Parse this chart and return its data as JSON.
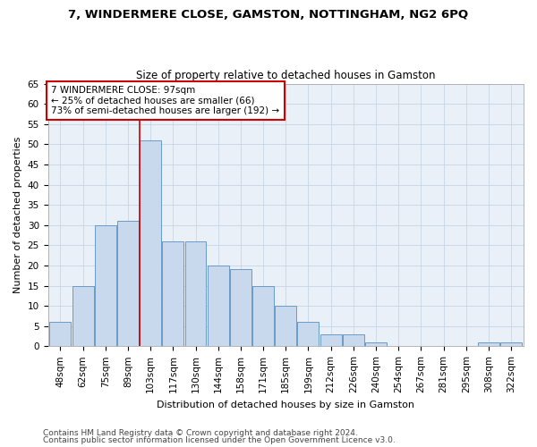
{
  "title": "7, WINDERMERE CLOSE, GAMSTON, NOTTINGHAM, NG2 6PQ",
  "subtitle": "Size of property relative to detached houses in Gamston",
  "xlabel": "Distribution of detached houses by size in Gamston",
  "ylabel": "Number of detached properties",
  "bar_labels": [
    "48sqm",
    "62sqm",
    "75sqm",
    "89sqm",
    "103sqm",
    "117sqm",
    "130sqm",
    "144sqm",
    "158sqm",
    "171sqm",
    "185sqm",
    "199sqm",
    "212sqm",
    "226sqm",
    "240sqm",
    "254sqm",
    "267sqm",
    "281sqm",
    "295sqm",
    "308sqm",
    "322sqm"
  ],
  "bar_values": [
    6,
    15,
    30,
    31,
    51,
    26,
    26,
    20,
    19,
    15,
    10,
    6,
    3,
    3,
    1,
    0,
    0,
    0,
    0,
    1,
    1
  ],
  "bar_color": "#c8d9ed",
  "bar_edge_color": "#5a8fc2",
  "red_line_x": 3.5,
  "annotation_text": "7 WINDERMERE CLOSE: 97sqm\n← 25% of detached houses are smaller (66)\n73% of semi-detached houses are larger (192) →",
  "annotation_box_color": "#ffffff",
  "annotation_box_edge": "#cc0000",
  "red_line_color": "#cc0000",
  "ylim": [
    0,
    65
  ],
  "yticks": [
    0,
    5,
    10,
    15,
    20,
    25,
    30,
    35,
    40,
    45,
    50,
    55,
    60,
    65
  ],
  "footer_line1": "Contains HM Land Registry data © Crown copyright and database right 2024.",
  "footer_line2": "Contains public sector information licensed under the Open Government Licence v3.0.",
  "bg_color": "#ffffff",
  "plot_bg_color": "#eaf0f8",
  "grid_color": "#c5d5e5",
  "title_fontsize": 9.5,
  "subtitle_fontsize": 8.5,
  "axis_label_fontsize": 8,
  "tick_fontsize": 7.5,
  "annotation_fontsize": 7.5,
  "footer_fontsize": 6.5
}
